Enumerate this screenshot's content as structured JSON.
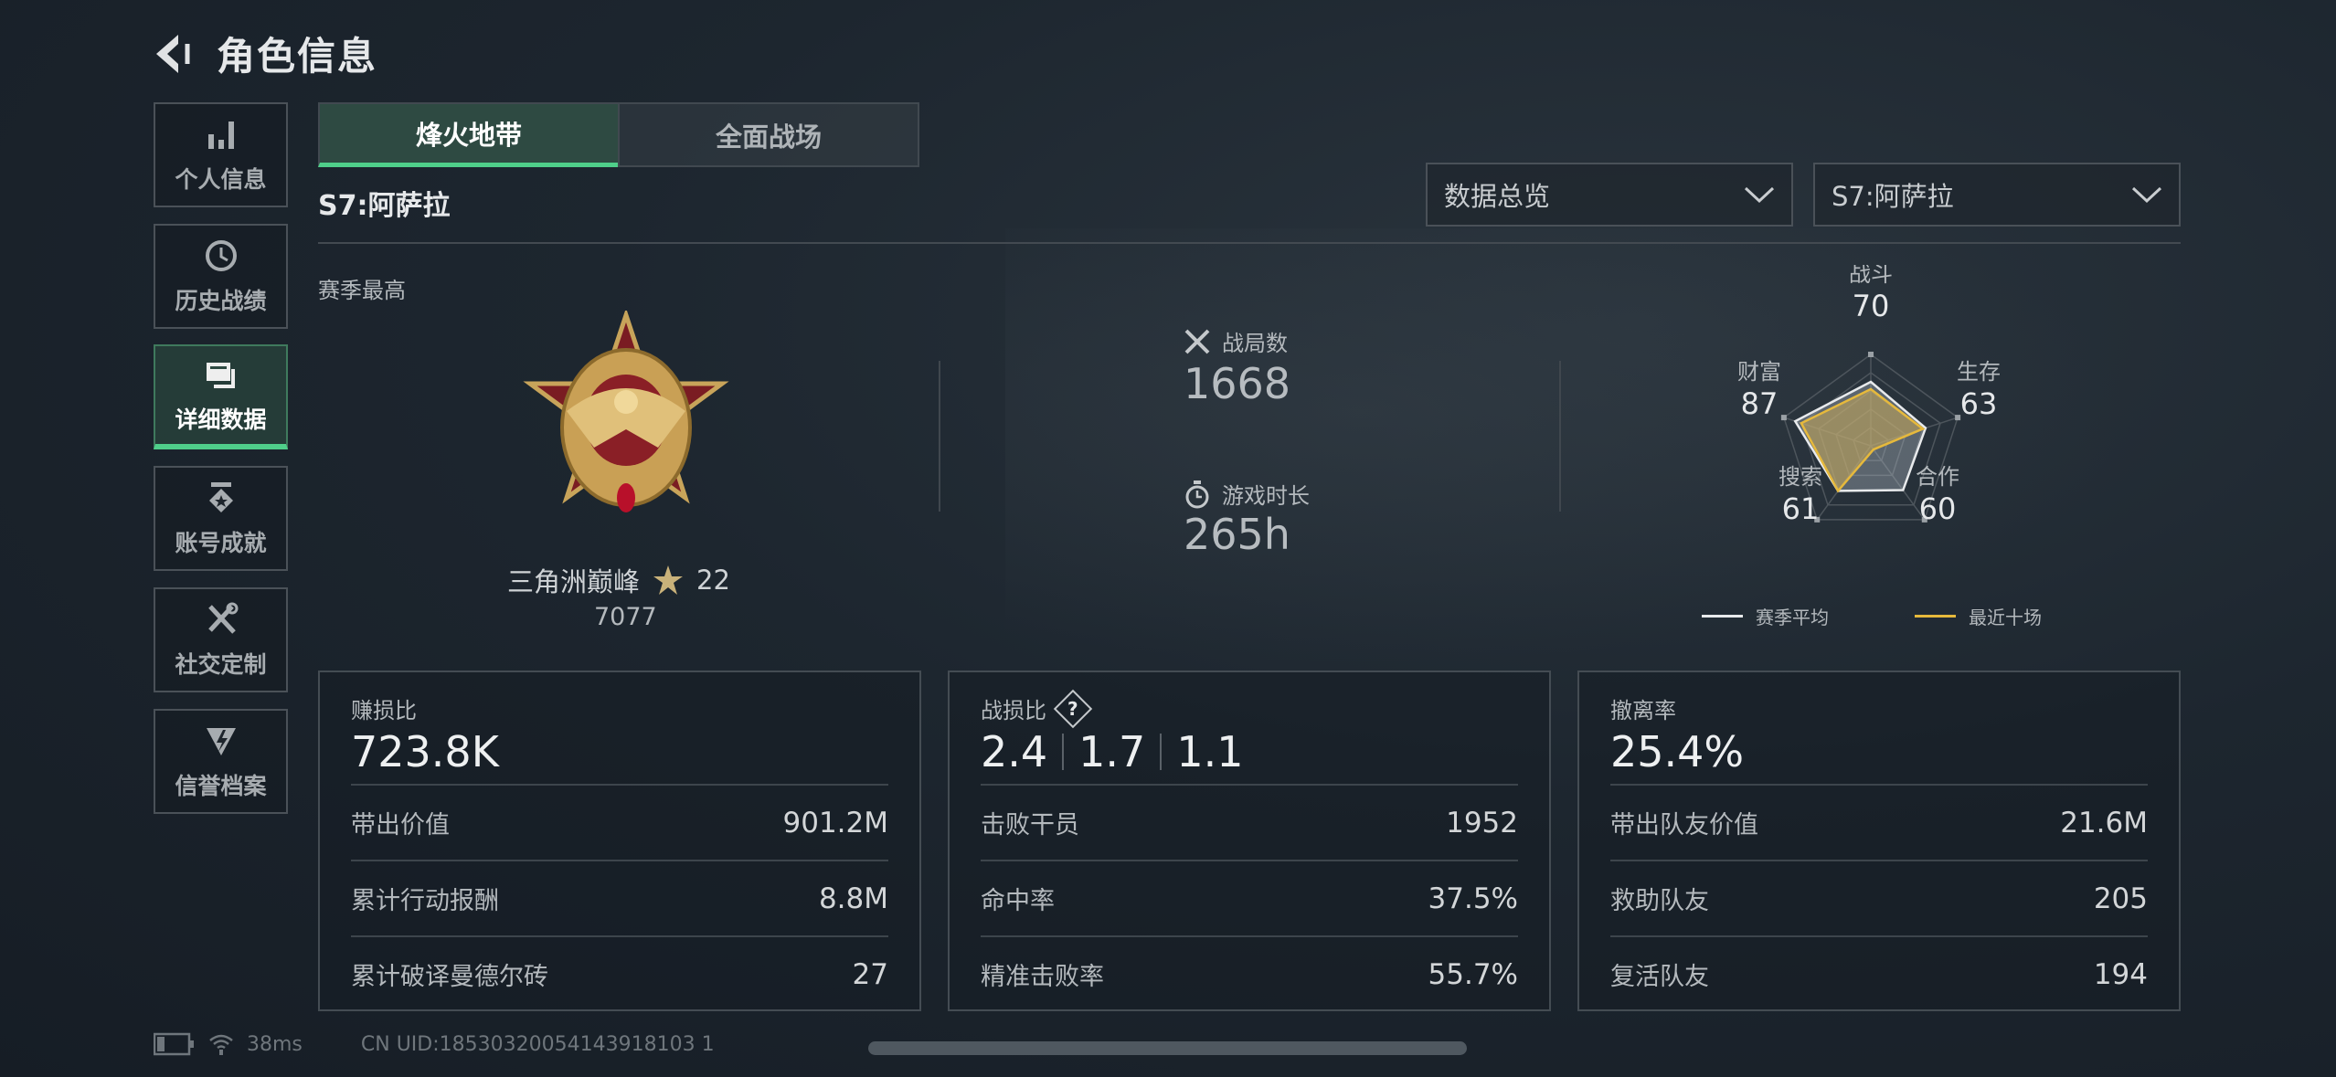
{
  "header": {
    "title": "角色信息"
  },
  "sidebar": {
    "items": [
      {
        "label": "个人信息",
        "icon": "bar-chart-icon"
      },
      {
        "label": "历史战绩",
        "icon": "history-clock-icon"
      },
      {
        "label": "详细数据",
        "icon": "folder-icon",
        "active": true
      },
      {
        "label": "账号成就",
        "icon": "medal-icon"
      },
      {
        "label": "社交定制",
        "icon": "tools-icon"
      },
      {
        "label": "信誉档案",
        "icon": "shield-bolt-icon"
      }
    ]
  },
  "tabs": [
    {
      "label": "烽火地带",
      "active": true
    },
    {
      "label": "全面战场"
    }
  ],
  "season_title": "S7:阿萨拉",
  "filters": {
    "view": "数据总览",
    "season": "S7:阿萨拉"
  },
  "season_best": {
    "label": "赛季最高",
    "rank_name": "三角洲巅峰",
    "stars": "22",
    "score": "7077"
  },
  "summary": {
    "matches_label": "战局数",
    "matches": "1668",
    "playtime_label": "游戏时长",
    "playtime": "265h"
  },
  "radar": {
    "axes": [
      "战斗",
      "生存",
      "合作",
      "搜索",
      "财富"
    ],
    "values": [
      "70",
      "63",
      "60",
      "61",
      "87"
    ],
    "series": [
      {
        "name": "赛季平均",
        "color": "#e8eaec",
        "values": [
          70,
          63,
          60,
          61,
          87
        ]
      },
      {
        "name": "最近十场",
        "color": "#e6b93c",
        "values": [
          62,
          60,
          5,
          61,
          80
        ]
      }
    ]
  },
  "cards": [
    {
      "title": "赚损比",
      "value": "723.8K",
      "rows": [
        {
          "k": "带出价值",
          "v": "901.2M"
        },
        {
          "k": "累计行动报酬",
          "v": "8.8M"
        },
        {
          "k": "累计破译曼德尔砖",
          "v": "27"
        }
      ]
    },
    {
      "title": "战损比",
      "values": [
        "2.4",
        "1.7",
        "1.1"
      ],
      "help": "?",
      "rows": [
        {
          "k": "击败干员",
          "v": "1952"
        },
        {
          "k": "命中率",
          "v": "37.5%"
        },
        {
          "k": "精准击败率",
          "v": "55.7%"
        }
      ]
    },
    {
      "title": "撤离率",
      "value": "25.4%",
      "rows": [
        {
          "k": "带出队友价值",
          "v": "21.6M"
        },
        {
          "k": "救助队友",
          "v": "205"
        },
        {
          "k": "复活队友",
          "v": "194"
        }
      ]
    }
  ],
  "status": {
    "ping": "38ms",
    "uid": "CN UID:18530320054143918103 1"
  }
}
